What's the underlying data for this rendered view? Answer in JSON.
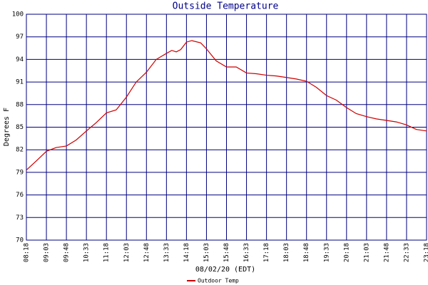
{
  "chart_data": {
    "type": "line",
    "title": "Outside Temperature",
    "x_label": "08/02/20 (EDT)",
    "y_label": "Degrees F",
    "x": [
      498,
      520,
      543,
      565,
      588,
      610,
      633,
      655,
      678,
      700,
      723,
      745,
      768,
      790,
      813,
      825,
      835,
      845,
      858,
      870,
      890,
      903,
      925,
      948,
      970,
      993,
      1015,
      1038,
      1060,
      1083,
      1105,
      1128,
      1150,
      1173,
      1195,
      1218,
      1240,
      1263,
      1285,
      1308,
      1330,
      1353,
      1375,
      1398
    ],
    "series": [
      {
        "name": "Outdoor Temp",
        "color": "#cc0000",
        "values": [
          79.3,
          80.5,
          81.8,
          82.3,
          82.5,
          83.3,
          84.5,
          85.6,
          86.9,
          87.3,
          89.0,
          91.0,
          92.3,
          94.0,
          94.8,
          95.2,
          95.0,
          95.3,
          96.3,
          96.5,
          96.2,
          95.4,
          93.8,
          93.0,
          93.0,
          92.2,
          92.1,
          91.9,
          91.8,
          91.6,
          91.4,
          91.1,
          90.3,
          89.2,
          88.6,
          87.6,
          86.8,
          86.4,
          86.1,
          85.9,
          85.7,
          85.3,
          84.7,
          84.5
        ]
      }
    ],
    "xlim": [
      498,
      1398
    ],
    "xticks": [
      {
        "value": 498,
        "label": "08:18"
      },
      {
        "value": 543,
        "label": "09:03"
      },
      {
        "value": 588,
        "label": "09:48"
      },
      {
        "value": 633,
        "label": "10:33"
      },
      {
        "value": 678,
        "label": "11:18"
      },
      {
        "value": 723,
        "label": "12:03"
      },
      {
        "value": 768,
        "label": "12:48"
      },
      {
        "value": 813,
        "label": "13:33"
      },
      {
        "value": 858,
        "label": "14:18"
      },
      {
        "value": 903,
        "label": "15:03"
      },
      {
        "value": 948,
        "label": "15:48"
      },
      {
        "value": 993,
        "label": "16:33"
      },
      {
        "value": 1038,
        "label": "17:18"
      },
      {
        "value": 1083,
        "label": "18:03"
      },
      {
        "value": 1128,
        "label": "18:48"
      },
      {
        "value": 1173,
        "label": "19:33"
      },
      {
        "value": 1218,
        "label": "20:18"
      },
      {
        "value": 1263,
        "label": "21:03"
      },
      {
        "value": 1308,
        "label": "21:48"
      },
      {
        "value": 1353,
        "label": "22:33"
      },
      {
        "value": 1398,
        "label": "23:18"
      }
    ],
    "ylim": [
      70,
      100
    ],
    "yticks": [
      70,
      73,
      76,
      79,
      82,
      85,
      88,
      91,
      94,
      97,
      100
    ],
    "grid": true,
    "grid_color": "#000080",
    "legend": "bottom"
  }
}
